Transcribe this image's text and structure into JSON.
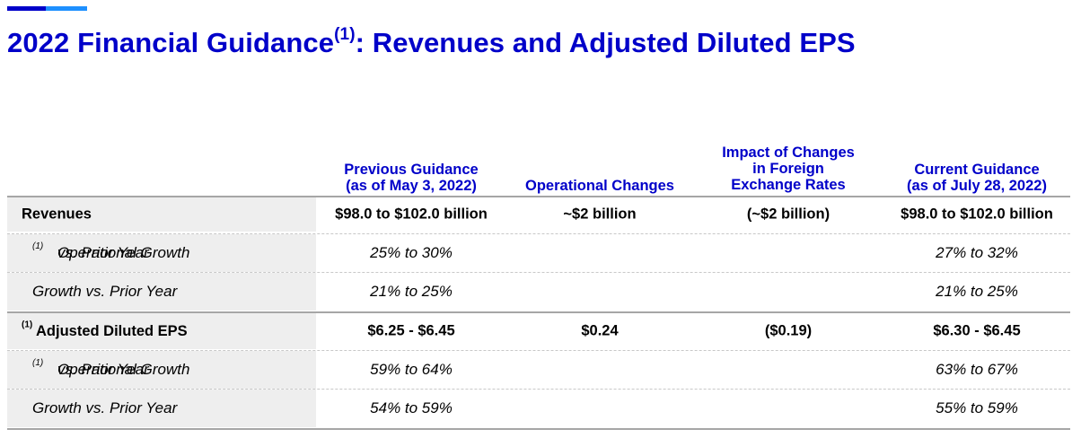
{
  "title": {
    "main": "2022 Financial Guidance",
    "sup": "(1)",
    "rest": ": Revenues and Adjusted Diluted EPS"
  },
  "headers": [
    {
      "line1": "Previous Guidance",
      "line2": "(as of May 3, 2022)",
      "line3": ""
    },
    {
      "line1": "",
      "line2": "",
      "line3": "Operational Changes"
    },
    {
      "line1": "Impact of Changes",
      "line2": "in Foreign",
      "line3": "Exchange Rates"
    },
    {
      "line1": "",
      "line2": "Current Guidance",
      "line3": "(as of July 28, 2022)"
    }
  ],
  "rows": [
    {
      "label": "Revenues",
      "sup": "",
      "suffix": "",
      "values": [
        "$98.0 to $102.0 billion",
        "~$2 billion",
        "(~$2 billion)",
        "$98.0 to $102.0 billion"
      ]
    },
    {
      "label": "Operational Growth",
      "sup": "(1)",
      "suffix": " vs. Prior Year",
      "values": [
        "25% to 30%",
        "",
        "",
        "27% to 32%"
      ]
    },
    {
      "label": "Growth vs. Prior Year",
      "sup": "",
      "suffix": "",
      "values": [
        "21% to 25%",
        "",
        "",
        "21% to 25%"
      ]
    },
    {
      "label": "Adjusted Diluted EPS",
      "sup": "(1)",
      "suffix": "",
      "values": [
        "$6.25 - $6.45",
        "$0.24",
        "($0.19)",
        "$6.30 - $6.45"
      ]
    },
    {
      "label": "Operational Growth",
      "sup": "(1)",
      "suffix": " vs. Prior Year",
      "values": [
        "59% to 64%",
        "",
        "",
        "63% to 67%"
      ]
    },
    {
      "label": "Growth vs. Prior Year",
      "sup": "",
      "suffix": "",
      "values": [
        "54% to 59%",
        "",
        "",
        "55% to 59%"
      ]
    }
  ],
  "colors": {
    "brand_blue": "#0000c9",
    "accent_light": "#1e90ff"
  }
}
